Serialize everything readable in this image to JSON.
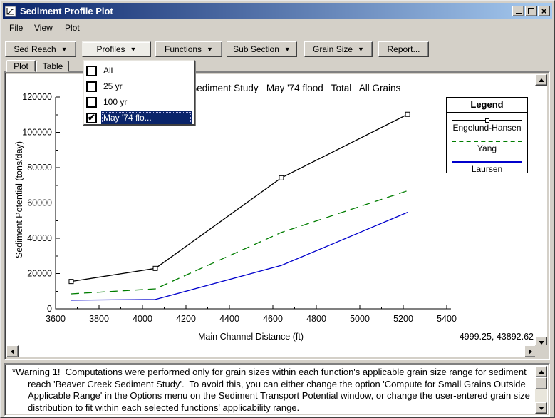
{
  "window": {
    "title": "Sediment Profile Plot"
  },
  "menu": {
    "items": [
      "File",
      "View",
      "Plot"
    ]
  },
  "toolbar": {
    "arrow": "▼",
    "buttons": [
      {
        "label": "Sed Reach"
      },
      {
        "label": "Profiles"
      },
      {
        "label": "Functions"
      },
      {
        "label": "Sub Section"
      },
      {
        "label": "Grain Size"
      },
      {
        "label": "Report..."
      }
    ]
  },
  "tabs": {
    "items": [
      "Plot",
      "Table"
    ],
    "active": "Plot"
  },
  "glyphs": {
    "check": "✔"
  },
  "profiles_dropdown": {
    "items": [
      {
        "label": "All",
        "checked": false,
        "selected": false
      },
      {
        "label": "25 yr",
        "checked": false,
        "selected": false
      },
      {
        "label": "100 yr",
        "checked": false,
        "selected": false
      },
      {
        "label": "May '74 flo...",
        "checked": true,
        "selected": true
      }
    ]
  },
  "chart_data": {
    "type": "line",
    "title": "Beaver Creek Sediment Study   May '74 flood   Total   All Grains",
    "xlabel": "Main Channel Distance (ft)",
    "ylabel": "Sediment Potential (tons/day)",
    "xlim": [
      3600,
      5400
    ],
    "ylim": [
      0,
      120000
    ],
    "xticks": [
      3600,
      3800,
      4000,
      4200,
      4400,
      4600,
      4800,
      5000,
      5200,
      5400
    ],
    "yticks": [
      0,
      20000,
      40000,
      60000,
      80000,
      100000,
      120000
    ],
    "legend_title": "Legend",
    "legend_position": "upper right",
    "grid": false,
    "series": [
      {
        "name": "Engelund-Hansen",
        "color": "#000000",
        "style": "solid",
        "marker": "open-square",
        "x": [
          3672,
          4059,
          4639,
          5220
        ],
        "y": [
          15500,
          22900,
          74200,
          110200
        ]
      },
      {
        "name": "Yang",
        "color": "#007d00",
        "style": "dashed",
        "marker": null,
        "x": [
          3672,
          4059,
          4639,
          5220
        ],
        "y": [
          8500,
          11300,
          43300,
          66900
        ]
      },
      {
        "name": "Laursen",
        "color": "#0000cc",
        "style": "solid",
        "marker": null,
        "x": [
          3672,
          4059,
          4639,
          5220
        ],
        "y": [
          4900,
          5300,
          24600,
          54700
        ]
      }
    ],
    "readout": "4999.25, 43892.62"
  },
  "warning": {
    "text": "*Warning 1!  Computations were performed only for grain sizes within each function's applicable grain size range for sediment reach 'Beaver Creek Sediment Study'.  To avoid this, you can either change the option 'Compute for Small Grains Outside Applicable Range' in the Options menu on the Sediment Transport Potential window, or change the user-entered grain size distribution to fit within each selected functions' applicability range."
  },
  "colors": {
    "titlebar_start": "#0a246a",
    "titlebar_end": "#a6caf0",
    "highlight": "#0a246a"
  }
}
